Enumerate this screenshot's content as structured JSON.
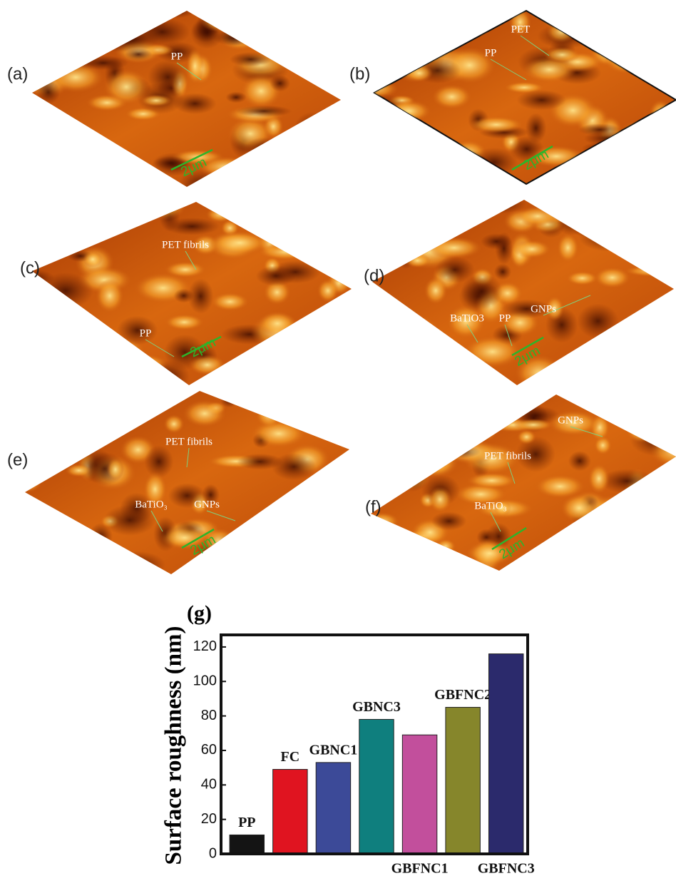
{
  "panels": [
    {
      "label": "(a)",
      "annotations": [
        "PP"
      ],
      "scale": "2μm"
    },
    {
      "label": "(b)",
      "annotations": [
        "PET",
        "PP"
      ],
      "scale": "2μm"
    },
    {
      "label": "(c)",
      "annotations": [
        "PET fibrils",
        "PP"
      ],
      "scale": "2μm"
    },
    {
      "label": "(d)",
      "annotations": [
        "GNPs",
        "BaTiO3",
        "PP"
      ],
      "scale": "2μm"
    },
    {
      "label": "(e)",
      "annotations": [
        "PET fibrils",
        "BaTiO₃",
        "GNPs"
      ],
      "scale": "2μm"
    },
    {
      "label": "(f)",
      "annotations": [
        "GNPs",
        "PET fibrils",
        "BaTiO₃"
      ],
      "scale": "2μm"
    }
  ],
  "chart_data": {
    "type": "bar",
    "panel_label": "(g)",
    "y_label": "Surface roughness (nm)",
    "categories": [
      "PP",
      "FC",
      "GBNC1",
      "GBNC3",
      "GBFNC1",
      "GBFNC2",
      "GBFNC3"
    ],
    "values": [
      11,
      49,
      53,
      78,
      69,
      85,
      116
    ],
    "colors": [
      "#141414",
      "#e01420",
      "#3c4a98",
      "#0f7f7e",
      "#c24f9c",
      "#86862b",
      "#2b2a6c"
    ],
    "ylim": [
      0,
      127
    ],
    "yticks": [
      0,
      20,
      40,
      60,
      80,
      100,
      120
    ],
    "grid": false
  }
}
